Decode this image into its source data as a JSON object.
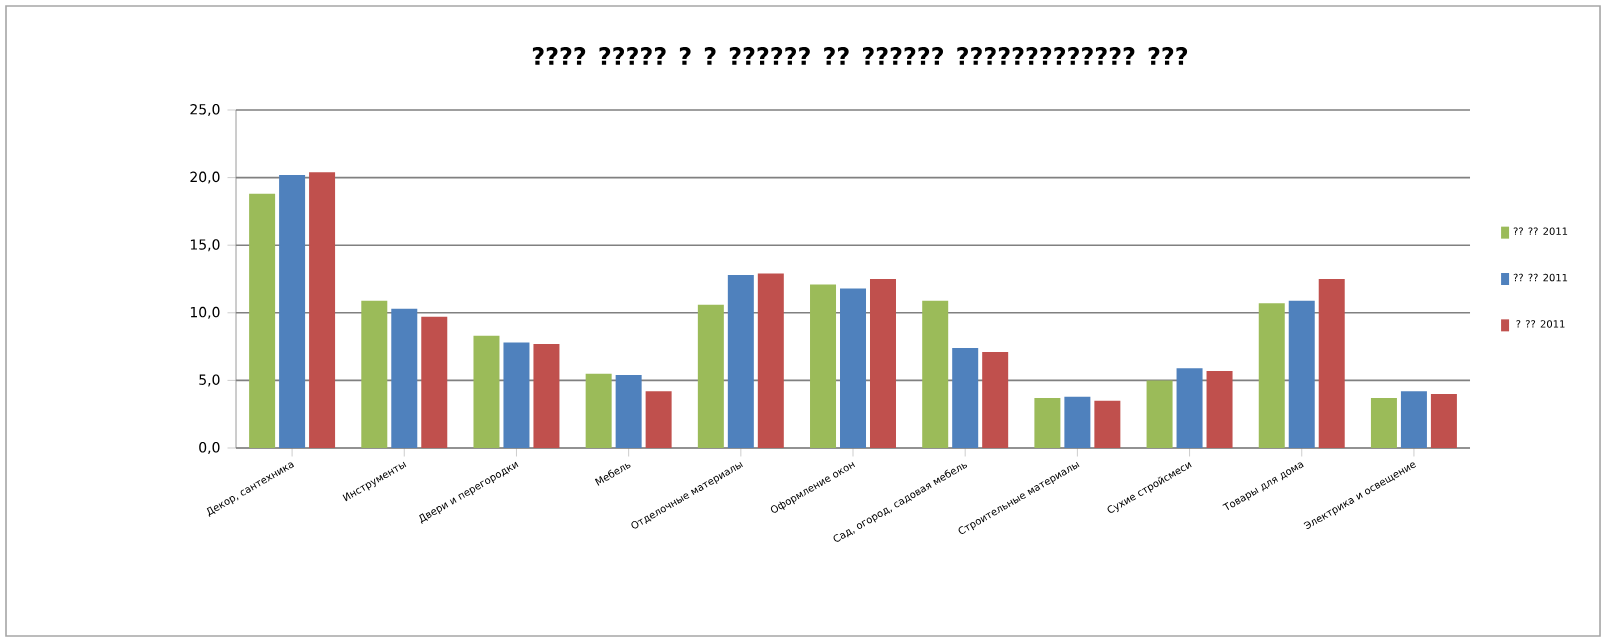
{
  "chart_data": {
    "type": "bar",
    "title": "???? ????? ? ? ?????? ?? ?????? ????????????? ???",
    "categories": [
      "Декор, сантехника",
      "Инструменты",
      "Двери и перегородки",
      "Мебель",
      "Отделочные материалы",
      "Оформление окон",
      "Сад, огород, садовая мебель",
      "Строительные материалы",
      "Сухие стройсмеси",
      "Товары для дома",
      "Электрика и освещение"
    ],
    "series": [
      {
        "name": "?? ?? 2011",
        "color": "#9bbb59",
        "values": [
          18.8,
          10.9,
          8.3,
          5.5,
          10.6,
          12.1,
          10.9,
          3.7,
          5.0,
          10.7,
          3.7
        ]
      },
      {
        "name": "?? ?? 2011",
        "color": "#4f81bd",
        "values": [
          20.2,
          10.3,
          7.8,
          5.4,
          12.8,
          11.8,
          7.4,
          3.8,
          5.9,
          10.9,
          4.2
        ]
      },
      {
        "name": "? ?? 2011",
        "color": "#c0504d",
        "values": [
          20.4,
          9.7,
          7.7,
          4.2,
          12.9,
          12.5,
          7.1,
          3.5,
          5.7,
          12.5,
          4.0
        ]
      }
    ],
    "ylim": [
      0,
      25
    ],
    "yticks": [
      {
        "value": 0,
        "label": "0,0"
      },
      {
        "value": 5,
        "label": "5,0"
      },
      {
        "value": 10,
        "label": "10,0"
      },
      {
        "value": 15,
        "label": "15,0"
      },
      {
        "value": 20,
        "label": "20,0"
      },
      {
        "value": 25,
        "label": "25,0"
      }
    ],
    "grid": "y",
    "legend": "right"
  }
}
